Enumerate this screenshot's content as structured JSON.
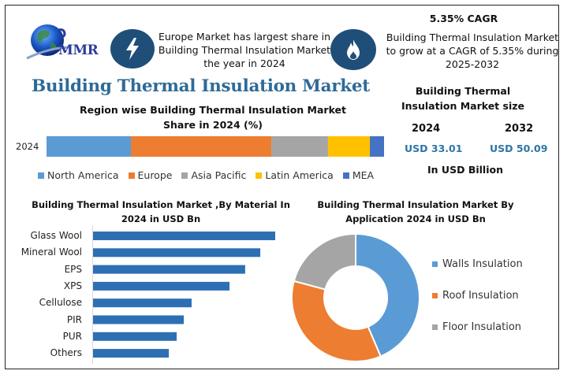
{
  "logo": {
    "text": "MMR"
  },
  "header": {
    "info_left": "Europe Market has largest share in Building Thermal Insulation Market the year in 2024",
    "icon_left": "lightning-icon",
    "cagr_title": "5.35% CAGR",
    "info_right": "Building Thermal Insulation Market to grow at a CAGR of 5.35% during 2025-2032",
    "icon_right": "flame-icon"
  },
  "main_title": "Building Thermal Insulation Market",
  "market_size": {
    "title": "Building Thermal Insulation Market size",
    "year_a": "2024",
    "year_b": "2032",
    "value_a": "USD 33.01",
    "value_b": "USD 50.09",
    "unit": "In USD Billion"
  },
  "colors": {
    "north_america": "#5b9bd5",
    "europe": "#ed7d31",
    "asia_pacific": "#a5a5a5",
    "latin_america": "#ffc000",
    "mea": "#4472c4",
    "bar": "#2e6fb3",
    "icon_bg": "#1f4e79",
    "title": "#2e6a97",
    "usd": "#2e75a5"
  },
  "chart_data": [
    {
      "type": "bar",
      "orientation": "horizontal-stacked",
      "title": "Region wise Building Thermal Insulation Market Share in 2024 (%)",
      "categories": [
        "2024"
      ],
      "series": [
        {
          "name": "North America",
          "values": [
            25.0
          ]
        },
        {
          "name": "Europe",
          "values": [
            41.6
          ]
        },
        {
          "name": "Asia Pacific",
          "values": [
            16.8
          ]
        },
        {
          "name": "Latin America",
          "values": [
            12.4
          ]
        },
        {
          "name": "MEA",
          "values": [
            4.2
          ]
        }
      ],
      "xlim": [
        0,
        100
      ],
      "legend": "bottom",
      "grid": false
    },
    {
      "type": "bar",
      "orientation": "horizontal",
      "title": "Building Thermal Insulation Market ,By Material In 2024 in USD Bn",
      "categories": [
        "Glass Wool",
        "Mineral Wool",
        "EPS",
        "XPS",
        "Cellulose",
        "PIR",
        "PUR",
        "Others"
      ],
      "values": [
        100,
        91.8,
        83.5,
        74.9,
        54.1,
        49.8,
        45.9,
        41.6
      ],
      "value_scale": "relative (largest = 100), no axis shown",
      "grid": false
    },
    {
      "type": "pie",
      "style": "donut",
      "title": "Building Thermal Insulation Market  By Application 2024 in USD Bn",
      "categories": [
        "Walls Insulation",
        "Roof Insulation",
        "Floor Insulation"
      ],
      "values": [
        43.6,
        35.6,
        20.8
      ],
      "legend": "right"
    }
  ]
}
